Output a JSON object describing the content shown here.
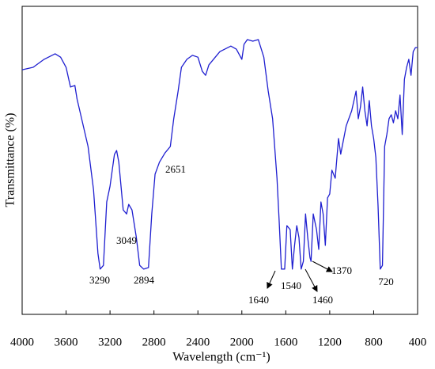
{
  "chart_data": {
    "type": "line",
    "xlabel": "Wavelength (cm⁻¹)",
    "ylabel": "Transmittance (%)",
    "xlim": [
      4000,
      400
    ],
    "xticks": [
      4000,
      3600,
      3200,
      2800,
      2400,
      2000,
      1600,
      1200,
      800,
      400
    ],
    "ylim": [
      0,
      100
    ],
    "color": "#1f1fd0",
    "annotations": [
      "3290",
      "3049",
      "2894",
      "2651",
      "1640",
      "1540",
      "1460",
      "1370",
      "720"
    ],
    "x": [
      4000,
      3900,
      3800,
      3700,
      3650,
      3600,
      3560,
      3520,
      3500,
      3450,
      3400,
      3350,
      3310,
      3290,
      3260,
      3230,
      3200,
      3160,
      3140,
      3120,
      3080,
      3049,
      3030,
      3000,
      2960,
      2930,
      2894,
      2850,
      2820,
      2790,
      2750,
      2700,
      2651,
      2620,
      2580,
      2550,
      2500,
      2450,
      2400,
      2360,
      2330,
      2300,
      2200,
      2100,
      2050,
      2000,
      1980,
      1950,
      1900,
      1850,
      1800,
      1760,
      1720,
      1680,
      1660,
      1640,
      1610,
      1590,
      1560,
      1540,
      1520,
      1500,
      1480,
      1460,
      1440,
      1420,
      1400,
      1380,
      1370,
      1350,
      1320,
      1300,
      1280,
      1260,
      1240,
      1220,
      1200,
      1180,
      1150,
      1120,
      1100,
      1050,
      1000,
      960,
      940,
      920,
      900,
      880,
      860,
      840,
      820,
      800,
      780,
      760,
      740,
      720,
      710,
      700,
      680,
      660,
      640,
      620,
      600,
      580,
      560,
      540,
      520,
      500,
      480,
      460,
      440,
      420,
      400
    ],
    "values": [
      79.4,
      80.2,
      82.8,
      84.6,
      83.5,
      80.2,
      73.8,
      74.3,
      69.9,
      62.2,
      54.5,
      40.4,
      19.8,
      14.7,
      15.9,
      36.5,
      41.6,
      51.9,
      53.2,
      49.4,
      33.9,
      32.6,
      35.7,
      33.9,
      24.9,
      15.9,
      14.7,
      15.2,
      32.6,
      45.5,
      49.4,
      52.4,
      54.5,
      63.5,
      72.5,
      80.2,
      82.8,
      84.1,
      83.5,
      78.9,
      77.6,
      81.0,
      85.3,
      87.1,
      86.1,
      82.8,
      87.7,
      89.2,
      88.7,
      89.2,
      83.5,
      72.5,
      63.5,
      44.2,
      30.1,
      14.7,
      14.7,
      28.8,
      27.5,
      14.7,
      22.4,
      28.8,
      24.9,
      14.7,
      17.2,
      32.6,
      24.9,
      18.5,
      17.2,
      32.6,
      27.5,
      21.1,
      36.5,
      32.6,
      22.4,
      37.8,
      39.1,
      46.8,
      44.2,
      57.1,
      52.0,
      61.2,
      66.1,
      72.5,
      63.5,
      67.4,
      73.8,
      66.1,
      61.2,
      69.4,
      61.2,
      57.1,
      50.9,
      35.2,
      14.7,
      15.9,
      35.2,
      54.5,
      58.4,
      63.5,
      64.8,
      62.2,
      66.1,
      63.5,
      71.2,
      58.4,
      76.3,
      80.2,
      82.8,
      77.6,
      85.3,
      86.6,
      86.6
    ]
  }
}
